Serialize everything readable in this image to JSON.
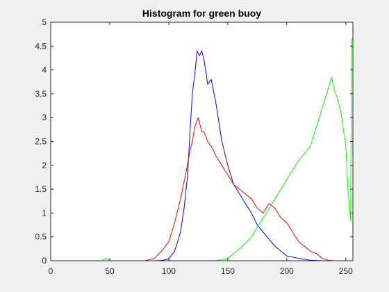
{
  "chart_data": {
    "type": "line",
    "title": "Histogram for green buoy",
    "xlabel": "",
    "ylabel": "",
    "xlim": [
      0,
      256
    ],
    "ylim": [
      0,
      5
    ],
    "xticks": [
      0,
      50,
      100,
      150,
      200,
      250
    ],
    "yticks": [
      0,
      0.5,
      1,
      1.5,
      2,
      2.5,
      3,
      3.5,
      4,
      4.5,
      5
    ],
    "xtick_labels": [
      "0",
      "50",
      "100",
      "150",
      "200",
      "250"
    ],
    "ytick_labels": [
      "0",
      "0.5",
      "1",
      "1.5",
      "2",
      "2.5",
      "3",
      "3.5",
      "4",
      "4.5",
      "5"
    ],
    "grid": false,
    "box": true,
    "series": [
      {
        "color": "#0000ff",
        "x": [
          0,
          80,
          90,
          95,
          100,
          105,
          110,
          113,
          116,
          118,
          120,
          122,
          124,
          126,
          128,
          130,
          133,
          136,
          140,
          145,
          150,
          155,
          160,
          165,
          170,
          175,
          180,
          185,
          190,
          195,
          200,
          210,
          220,
          230,
          240,
          256
        ],
        "y": [
          0,
          0,
          0,
          0.01,
          0.04,
          0.2,
          0.6,
          1.1,
          1.8,
          2.7,
          3.5,
          3.9,
          4.4,
          4.3,
          4.4,
          4.2,
          3.7,
          3.8,
          3.3,
          2.5,
          2.0,
          1.6,
          1.4,
          1.2,
          1.0,
          0.75,
          0.6,
          0.45,
          0.3,
          0.2,
          0.1,
          0.05,
          0.01,
          0,
          0,
          0
        ]
      },
      {
        "color": "#ff0000",
        "x": [
          0,
          80,
          88,
          94,
          100,
          105,
          110,
          115,
          118,
          120,
          122,
          125,
          128,
          130,
          133,
          136,
          140,
          145,
          150,
          155,
          160,
          165,
          170,
          175,
          180,
          185,
          190,
          195,
          200,
          205,
          210,
          215,
          220,
          225,
          230,
          235,
          240,
          256
        ],
        "y": [
          0,
          0,
          0.05,
          0.2,
          0.4,
          0.8,
          1.3,
          1.9,
          2.3,
          2.5,
          2.8,
          3.0,
          2.7,
          2.7,
          2.5,
          2.4,
          2.2,
          2.0,
          1.8,
          1.6,
          1.5,
          1.4,
          1.3,
          1.1,
          1.0,
          1.2,
          1.1,
          0.9,
          0.8,
          0.6,
          0.4,
          0.3,
          0.2,
          0.15,
          0.05,
          0.01,
          0,
          0
        ]
      },
      {
        "color": "#00ff00",
        "x": [
          0,
          44,
          46,
          48,
          50,
          140,
          150,
          160,
          170,
          180,
          190,
          200,
          210,
          220,
          225,
          230,
          235,
          238,
          240,
          243,
          246,
          250,
          252,
          254,
          255,
          256
        ],
        "y": [
          0,
          0,
          0.05,
          0.04,
          0,
          0,
          0.05,
          0.25,
          0.5,
          0.9,
          1.3,
          1.7,
          2.1,
          2.4,
          2.8,
          3.2,
          3.6,
          3.85,
          3.6,
          3.4,
          3.1,
          2.4,
          1.4,
          0.85,
          4.6,
          4.7
        ]
      }
    ]
  }
}
